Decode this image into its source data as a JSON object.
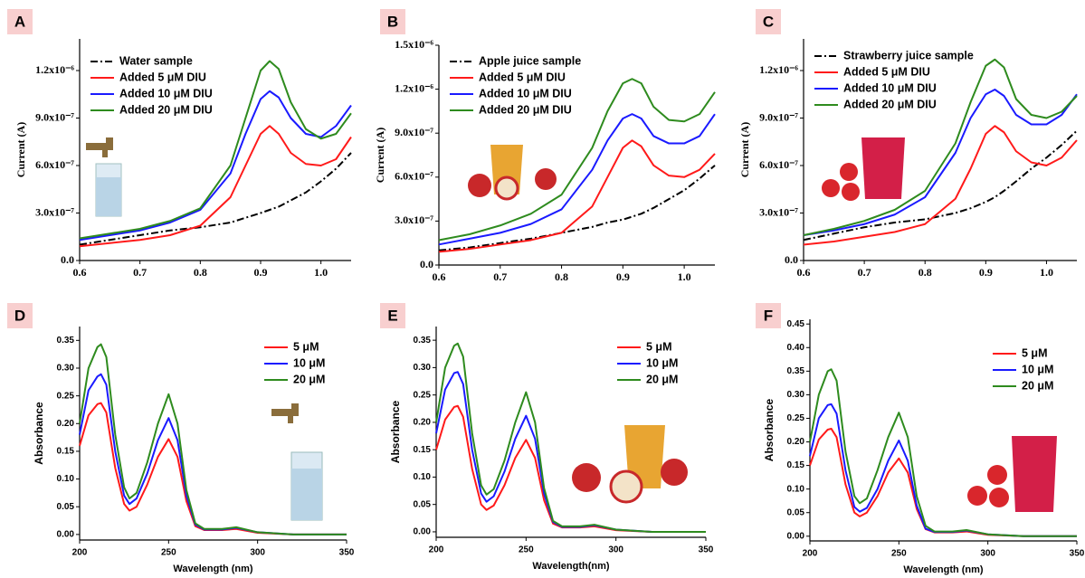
{
  "chart_data": [
    {
      "type": "line",
      "label": "A",
      "ylabel": "Current (A)",
      "x": [
        0.6,
        0.65,
        0.7,
        0.75,
        0.8,
        0.85,
        0.875,
        0.9,
        0.915,
        0.93,
        0.95,
        0.975,
        1.0,
        1.025,
        1.05
      ],
      "xlim": [
        0.6,
        1.05
      ],
      "xticks": [
        0.6,
        0.7,
        0.8,
        0.9,
        {
          "value": 1,
          "label": "1.0"
        }
      ],
      "ylim": [
        0,
        1.4e-06
      ],
      "yticks": [
        {
          "value": 0,
          "label": "0.0"
        },
        {
          "value": 3e-07,
          "label": "3.0x10⁻⁷"
        },
        {
          "value": 6e-07,
          "label": "6.0x10⁻⁷"
        },
        {
          "value": 9e-07,
          "label": "9.0x10⁻⁷"
        },
        {
          "value": 1.2e-06,
          "label": "1.2x10⁻⁶"
        }
      ],
      "series": [
        {
          "name": "Water sample",
          "color": "#000000",
          "linestyle": "dashdot",
          "values": [
            1e-07,
            1.3e-07,
            1.6e-07,
            1.9e-07,
            2.1e-07,
            2.4e-07,
            2.7e-07,
            3e-07,
            3.2e-07,
            3.4e-07,
            3.8e-07,
            4.3e-07,
            5e-07,
            5.8e-07,
            6.8e-07
          ]
        },
        {
          "name": "Added 5 μM DIU",
          "color": "#ff1a1a",
          "values": [
            9e-08,
            1.1e-07,
            1.3e-07,
            1.6e-07,
            2.2e-07,
            4e-07,
            6e-07,
            8e-07,
            8.5e-07,
            8e-07,
            6.8e-07,
            6.1e-07,
            6e-07,
            6.4e-07,
            7.8e-07
          ]
        },
        {
          "name": "Added 10 μM DIU",
          "color": "#1a1aff",
          "values": [
            1.3e-07,
            1.6e-07,
            1.9e-07,
            2.4e-07,
            3.2e-07,
            5.5e-07,
            8e-07,
            1.02e-06,
            1.07e-06,
            1.03e-06,
            9e-07,
            8e-07,
            7.8e-07,
            8.5e-07,
            9.8e-07
          ]
        },
        {
          "name": "Added 20 μM DIU",
          "color": "#2e8b1e",
          "values": [
            1.4e-07,
            1.7e-07,
            2e-07,
            2.5e-07,
            3.3e-07,
            6e-07,
            9e-07,
            1.2e-06,
            1.26e-06,
            1.21e-06,
            1e-06,
            8.3e-07,
            7.7e-07,
            8e-07,
            9.3e-07
          ]
        }
      ]
    },
    {
      "type": "line",
      "label": "B",
      "ylabel": "Current (A)",
      "x": [
        0.6,
        0.65,
        0.7,
        0.75,
        0.8,
        0.85,
        0.875,
        0.9,
        0.915,
        0.93,
        0.95,
        0.975,
        1.0,
        1.025,
        1.05
      ],
      "xlim": [
        0.6,
        1.05
      ],
      "xticks": [
        0.6,
        0.7,
        0.8,
        0.9,
        {
          "value": 1,
          "label": "1.0"
        }
      ],
      "ylim": [
        0,
        1.5e-06
      ],
      "yticks": [
        {
          "value": 0,
          "label": "0.0"
        },
        {
          "value": 3e-07,
          "label": "3.0x10⁻⁷"
        },
        {
          "value": 6e-07,
          "label": "6.0x10⁻⁷"
        },
        {
          "value": 9e-07,
          "label": "9.0x10⁻⁷"
        },
        {
          "value": 1.2e-06,
          "label": "1.2x10⁻⁶"
        },
        {
          "value": 1.5e-06,
          "label": "1.5x10⁻⁶"
        }
      ],
      "series": [
        {
          "name": "Apple juice sample",
          "color": "#000000",
          "linestyle": "dashdot",
          "values": [
            1e-07,
            1.2e-07,
            1.5e-07,
            1.8e-07,
            2.2e-07,
            2.6e-07,
            2.9e-07,
            3.1e-07,
            3.3e-07,
            3.5e-07,
            3.9e-07,
            4.5e-07,
            5.1e-07,
            5.9e-07,
            6.8e-07
          ]
        },
        {
          "name": "Added 5 μM DIU",
          "color": "#ff1a1a",
          "values": [
            9e-08,
            1.1e-07,
            1.4e-07,
            1.7e-07,
            2.2e-07,
            4e-07,
            6e-07,
            8e-07,
            8.5e-07,
            8.1e-07,
            6.8e-07,
            6.1e-07,
            6e-07,
            6.5e-07,
            7.6e-07
          ]
        },
        {
          "name": "Added 10 μM DIU",
          "color": "#1a1aff",
          "values": [
            1.4e-07,
            1.8e-07,
            2.2e-07,
            2.8e-07,
            3.8e-07,
            6.5e-07,
            8.5e-07,
            1e-06,
            1.03e-06,
            1e-06,
            8.8e-07,
            8.3e-07,
            8.3e-07,
            8.8e-07,
            1.03e-06
          ]
        },
        {
          "name": "Added 20 μM DIU",
          "color": "#2e8b1e",
          "values": [
            1.7e-07,
            2.1e-07,
            2.7e-07,
            3.5e-07,
            4.8e-07,
            8e-07,
            1.05e-06,
            1.24e-06,
            1.27e-06,
            1.24e-06,
            1.08e-06,
            9.9e-07,
            9.8e-07,
            1.03e-06,
            1.18e-06
          ]
        }
      ]
    },
    {
      "type": "line",
      "label": "C",
      "ylabel": "Current (A)",
      "x": [
        0.6,
        0.65,
        0.7,
        0.75,
        0.8,
        0.85,
        0.875,
        0.9,
        0.915,
        0.93,
        0.95,
        0.975,
        1.0,
        1.025,
        1.05
      ],
      "xlim": [
        0.6,
        1.05
      ],
      "xticks": [
        0.6,
        0.7,
        0.8,
        0.9,
        {
          "value": 1,
          "label": "1.0"
        }
      ],
      "ylim": [
        0,
        1.4e-06
      ],
      "yticks": [
        {
          "value": 0,
          "label": "0.0"
        },
        {
          "value": 3e-07,
          "label": "3.0x10⁻⁷"
        },
        {
          "value": 6e-07,
          "label": "6.0x10⁻⁷"
        },
        {
          "value": 9e-07,
          "label": "9.0x10⁻⁷"
        },
        {
          "value": 1.2e-06,
          "label": "1.2x10⁻⁶"
        }
      ],
      "series": [
        {
          "name": "Strawberry juice sample",
          "color": "#000000",
          "linestyle": "dashdot",
          "values": [
            1.3e-07,
            1.7e-07,
            2.1e-07,
            2.4e-07,
            2.6e-07,
            3e-07,
            3.3e-07,
            3.7e-07,
            4e-07,
            4.4e-07,
            5e-07,
            5.8e-07,
            6.5e-07,
            7.3e-07,
            8.2e-07
          ]
        },
        {
          "name": "Added 5 μM DIU",
          "color": "#ff1a1a",
          "values": [
            1e-07,
            1.2e-07,
            1.5e-07,
            1.8e-07,
            2.3e-07,
            3.9e-07,
            5.8e-07,
            8e-07,
            8.5e-07,
            8.1e-07,
            6.9e-07,
            6.2e-07,
            6e-07,
            6.5e-07,
            7.6e-07
          ]
        },
        {
          "name": "Added 10 μM DIU",
          "color": "#1a1aff",
          "values": [
            1.6e-07,
            1.9e-07,
            2.3e-07,
            2.9e-07,
            4e-07,
            6.8e-07,
            9e-07,
            1.05e-06,
            1.08e-06,
            1.04e-06,
            9.2e-07,
            8.6e-07,
            8.6e-07,
            9.2e-07,
            1.05e-06
          ]
        },
        {
          "name": "Added 20 μM DIU",
          "color": "#2e8b1e",
          "values": [
            1.6e-07,
            2e-07,
            2.5e-07,
            3.2e-07,
            4.4e-07,
            7.4e-07,
            1e-06,
            1.23e-06,
            1.27e-06,
            1.22e-06,
            1.02e-06,
            9.2e-07,
            9e-07,
            9.4e-07,
            1.04e-06
          ]
        }
      ]
    },
    {
      "type": "line",
      "label": "D",
      "xlabel": "Wavelength (nm)",
      "ylabel": "Absorbance",
      "x": [
        200,
        205,
        210,
        212,
        215,
        220,
        225,
        228,
        232,
        238,
        244,
        250,
        255,
        260,
        265,
        270,
        280,
        288,
        300,
        320,
        350
      ],
      "xlim": [
        200,
        350
      ],
      "xticks": [
        200,
        250,
        300,
        350
      ],
      "ylim": [
        -0.01,
        0.375
      ],
      "yticks": [
        {
          "value": 0,
          "label": "0.00"
        },
        0.05,
        {
          "value": 0.1,
          "label": "0.10"
        },
        0.15,
        {
          "value": 0.2,
          "label": "0.20"
        },
        0.25,
        {
          "value": 0.3,
          "label": "0.30"
        },
        0.35
      ],
      "series": [
        {
          "name": "5 μM",
          "color": "#ff1a1a",
          "values": [
            0.16,
            0.215,
            0.235,
            0.237,
            0.22,
            0.12,
            0.055,
            0.043,
            0.05,
            0.09,
            0.14,
            0.172,
            0.14,
            0.06,
            0.015,
            0.008,
            0.008,
            0.01,
            0.003,
            0,
            0
          ]
        },
        {
          "name": "10 μM",
          "color": "#1a1aff",
          "values": [
            0.18,
            0.26,
            0.285,
            0.289,
            0.27,
            0.15,
            0.07,
            0.055,
            0.065,
            0.11,
            0.17,
            0.21,
            0.17,
            0.07,
            0.018,
            0.009,
            0.009,
            0.012,
            0.004,
            0,
            0
          ]
        },
        {
          "name": "20 μM",
          "color": "#2e8b1e",
          "values": [
            0.2,
            0.3,
            0.338,
            0.343,
            0.32,
            0.18,
            0.085,
            0.065,
            0.075,
            0.13,
            0.2,
            0.253,
            0.2,
            0.08,
            0.02,
            0.01,
            0.01,
            0.013,
            0.004,
            0,
            0
          ]
        }
      ]
    },
    {
      "type": "line",
      "label": "E",
      "xlabel": "Wavelength(nm)",
      "ylabel": "Absorbance",
      "x": [
        200,
        205,
        210,
        212,
        215,
        220,
        225,
        228,
        232,
        238,
        244,
        250,
        255,
        260,
        265,
        270,
        280,
        288,
        300,
        320,
        350
      ],
      "xlim": [
        200,
        350
      ],
      "xticks": [
        200,
        250,
        300,
        350
      ],
      "ylim": [
        -0.01,
        0.375
      ],
      "yticks": [
        {
          "value": 0,
          "label": "0.00"
        },
        0.05,
        {
          "value": 0.1,
          "label": "0.10"
        },
        0.15,
        {
          "value": 0.2,
          "label": "0.20"
        },
        0.25,
        {
          "value": 0.3,
          "label": "0.30"
        },
        0.35
      ],
      "series": [
        {
          "name": "5 μM",
          "color": "#ff1a1a",
          "values": [
            0.15,
            0.205,
            0.228,
            0.23,
            0.21,
            0.115,
            0.05,
            0.04,
            0.048,
            0.085,
            0.135,
            0.168,
            0.135,
            0.058,
            0.015,
            0.008,
            0.008,
            0.01,
            0.003,
            0,
            0
          ]
        },
        {
          "name": "10 μM",
          "color": "#1a1aff",
          "values": [
            0.18,
            0.26,
            0.29,
            0.292,
            0.27,
            0.15,
            0.07,
            0.055,
            0.065,
            0.11,
            0.17,
            0.212,
            0.17,
            0.07,
            0.018,
            0.009,
            0.009,
            0.012,
            0.004,
            0,
            0
          ]
        },
        {
          "name": "20 μM",
          "color": "#2e8b1e",
          "values": [
            0.2,
            0.3,
            0.34,
            0.344,
            0.32,
            0.18,
            0.085,
            0.068,
            0.078,
            0.13,
            0.2,
            0.255,
            0.2,
            0.08,
            0.02,
            0.01,
            0.01,
            0.013,
            0.004,
            0,
            0
          ]
        }
      ]
    },
    {
      "type": "line",
      "label": "F",
      "xlabel": "Wavelength (nm)",
      "ylabel": "Absorbance",
      "x": [
        200,
        205,
        210,
        212,
        215,
        220,
        225,
        228,
        232,
        238,
        244,
        250,
        255,
        260,
        265,
        270,
        280,
        288,
        300,
        320,
        350
      ],
      "xlim": [
        200,
        350
      ],
      "xticks": [
        200,
        250,
        300,
        350
      ],
      "ylim": [
        -0.01,
        0.46
      ],
      "yticks": [
        {
          "value": 0,
          "label": "0.00"
        },
        0.05,
        {
          "value": 0.1,
          "label": "0.10"
        },
        0.15,
        {
          "value": 0.2,
          "label": "0.20"
        },
        0.25,
        {
          "value": 0.3,
          "label": "0.30"
        },
        0.35,
        {
          "value": 0.4,
          "label": "0.40"
        },
        0.45
      ],
      "series": [
        {
          "name": "5 μM",
          "color": "#ff1a1a",
          "values": [
            0.15,
            0.205,
            0.226,
            0.228,
            0.21,
            0.11,
            0.05,
            0.042,
            0.05,
            0.085,
            0.135,
            0.165,
            0.135,
            0.058,
            0.015,
            0.008,
            0.008,
            0.01,
            0.003,
            0,
            0
          ]
        },
        {
          "name": "10 μM",
          "color": "#1a1aff",
          "values": [
            0.17,
            0.25,
            0.278,
            0.28,
            0.26,
            0.14,
            0.062,
            0.052,
            0.06,
            0.1,
            0.16,
            0.203,
            0.16,
            0.065,
            0.016,
            0.009,
            0.009,
            0.012,
            0.004,
            0,
            0
          ]
        },
        {
          "name": "20 μM",
          "color": "#2e8b1e",
          "values": [
            0.2,
            0.3,
            0.35,
            0.354,
            0.33,
            0.18,
            0.085,
            0.07,
            0.08,
            0.14,
            0.21,
            0.262,
            0.21,
            0.085,
            0.022,
            0.01,
            0.01,
            0.013,
            0.004,
            0,
            0
          ]
        }
      ]
    }
  ]
}
